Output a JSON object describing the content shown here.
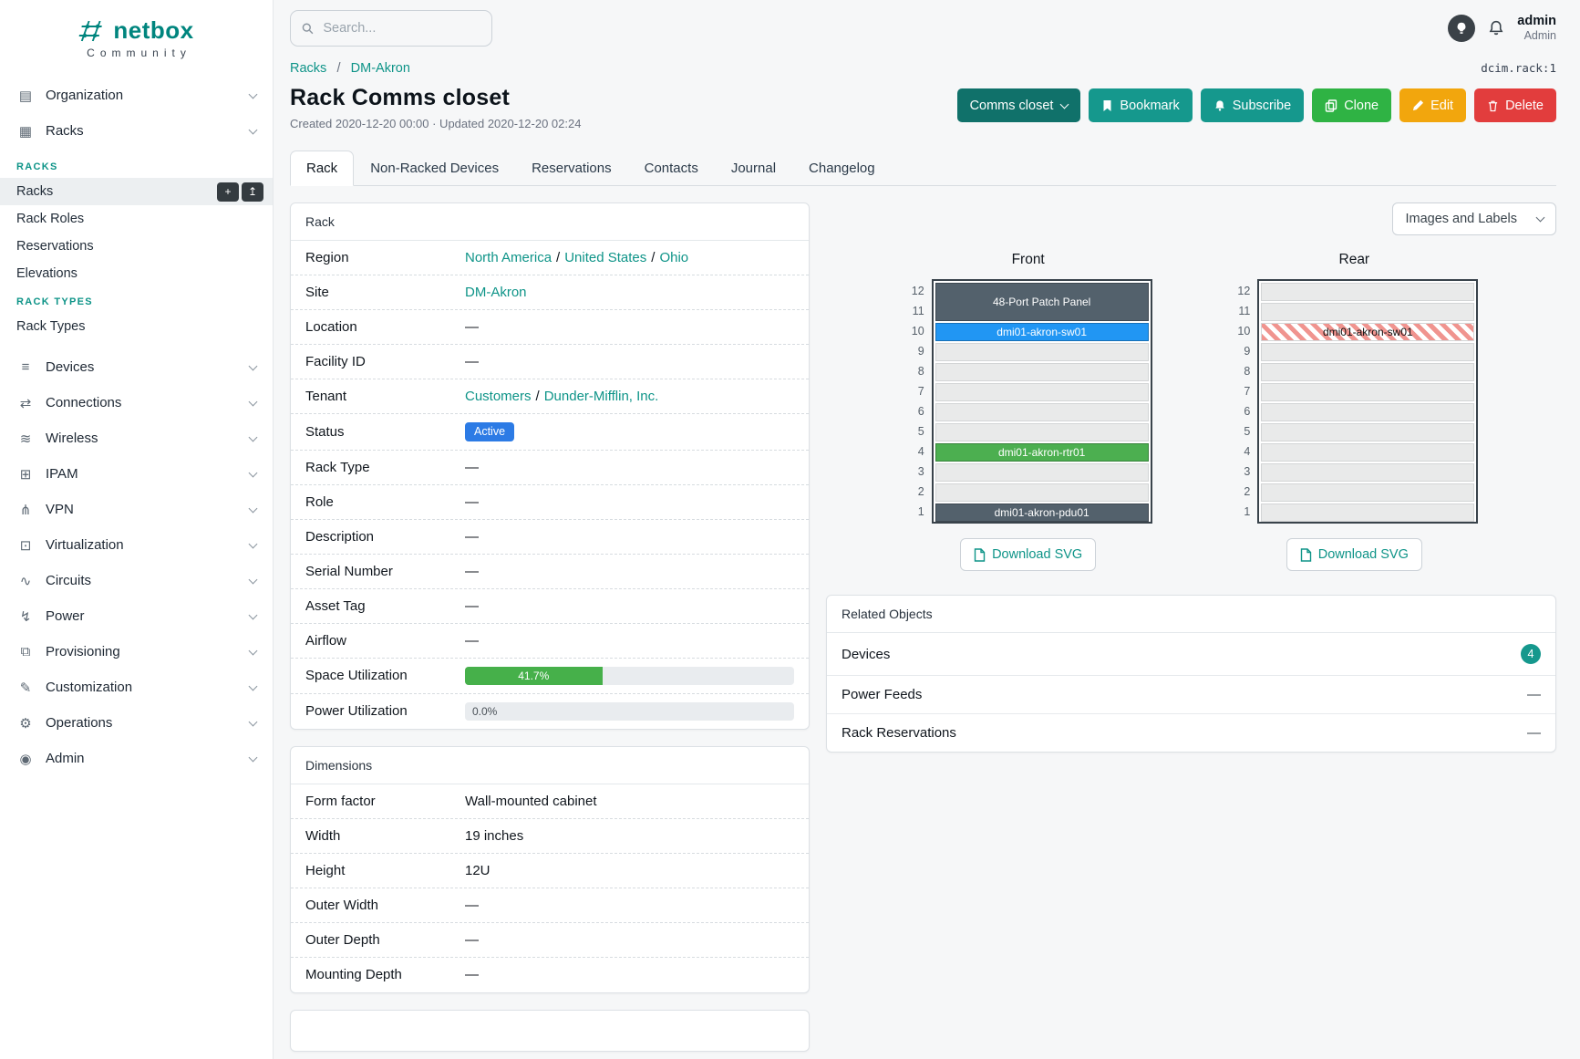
{
  "colors": {
    "brand": "#00857e",
    "link": "#0e9488",
    "teal_button": "#15988d",
    "teal_button_dark": "#10716a",
    "green_button": "#2fb344",
    "orange_button": "#f2a60d",
    "red_button": "#e23d3d",
    "active_badge": "#2c7be5",
    "progress_green": "#46b04a"
  },
  "brand": {
    "name": "netbox",
    "community": "Community"
  },
  "topbar": {
    "search_placeholder": "Search...",
    "username": "admin",
    "role": "Admin"
  },
  "sidebar": {
    "items": [
      {
        "label": "Organization",
        "glyph": "▤"
      },
      {
        "label": "Racks",
        "glyph": "▦"
      },
      {
        "label": "Devices",
        "glyph": "≡"
      },
      {
        "label": "Connections",
        "glyph": "⇄"
      },
      {
        "label": "Wireless",
        "glyph": "≋"
      },
      {
        "label": "IPAM",
        "glyph": "⊞"
      },
      {
        "label": "VPN",
        "glyph": "⋔"
      },
      {
        "label": "Virtualization",
        "glyph": "⊡"
      },
      {
        "label": "Circuits",
        "glyph": "∿"
      },
      {
        "label": "Power",
        "glyph": "↯"
      },
      {
        "label": "Provisioning",
        "glyph": "⧉"
      },
      {
        "label": "Customization",
        "glyph": "✎"
      },
      {
        "label": "Operations",
        "glyph": "⚙"
      },
      {
        "label": "Admin",
        "glyph": "◉"
      }
    ],
    "racks_menu": {
      "sections": [
        {
          "heading": "RACKS",
          "items": [
            "Racks",
            "Rack Roles",
            "Reservations",
            "Elevations"
          ]
        },
        {
          "heading": "RACK TYPES",
          "items": [
            "Rack Types"
          ]
        }
      ],
      "add_glyph": "+",
      "import_glyph": "↥"
    }
  },
  "page": {
    "breadcrumb": {
      "items": [
        "Racks",
        "DM-Akron"
      ],
      "separator": "/"
    },
    "object_id": "dcim.rack:1",
    "title": "Rack Comms closet",
    "meta": "Created 2020-12-20 00:00 · Updated 2020-12-20 02:24"
  },
  "actions": {
    "primary": "Comms closet",
    "bookmark": "Bookmark",
    "subscribe": "Subscribe",
    "clone": "Clone",
    "edit": "Edit",
    "delete": "Delete"
  },
  "tabs": [
    "Rack",
    "Non-Racked Devices",
    "Reservations",
    "Contacts",
    "Journal",
    "Changelog"
  ],
  "rack_card": {
    "title": "Rack",
    "separator": "/",
    "region": {
      "label": "Region",
      "links": [
        "North America",
        "United States",
        "Ohio"
      ]
    },
    "site": {
      "label": "Site",
      "link": "DM-Akron"
    },
    "location": {
      "label": "Location",
      "value": "—"
    },
    "facility_id": {
      "label": "Facility ID",
      "value": "—"
    },
    "tenant": {
      "label": "Tenant",
      "links": [
        "Customers",
        "Dunder-Mifflin, Inc."
      ]
    },
    "status": {
      "label": "Status",
      "badge": "Active"
    },
    "rack_type": {
      "label": "Rack Type",
      "value": "—"
    },
    "role": {
      "label": "Role",
      "value": "—"
    },
    "description": {
      "label": "Description",
      "value": "—"
    },
    "serial_number": {
      "label": "Serial Number",
      "value": "—"
    },
    "asset_tag": {
      "label": "Asset Tag",
      "value": "—"
    },
    "airflow": {
      "label": "Airflow",
      "value": "—"
    },
    "space_utilization": {
      "label": "Space Utilization",
      "percent": 41.7,
      "text": "41.7%"
    },
    "power_utilization": {
      "label": "Power Utilization",
      "percent": 0,
      "text": "0.0%"
    }
  },
  "dimensions_card": {
    "title": "Dimensions",
    "form_factor": {
      "label": "Form factor",
      "value": "Wall-mounted cabinet"
    },
    "width": {
      "label": "Width",
      "value": "19 inches"
    },
    "height": {
      "label": "Height",
      "value": "12U"
    },
    "outer_width": {
      "label": "Outer Width",
      "value": "—"
    },
    "outer_depth": {
      "label": "Outer Depth",
      "value": "—"
    },
    "mounting_depth": {
      "label": "Mounting Depth",
      "value": "—"
    }
  },
  "elevations": {
    "view_mode": "Images and Labels",
    "download_label": "Download SVG",
    "unit_count": 12,
    "front": {
      "title": "Front",
      "devices": [
        {
          "top_unit": 12,
          "span": 2,
          "label": "48-Port Patch Panel",
          "bg": "#53616c",
          "fg": "#ffffff"
        },
        {
          "top_unit": 10,
          "span": 1,
          "label": "dmi01-akron-sw01",
          "bg": "#2196f3",
          "fg": "#ffffff"
        },
        {
          "top_unit": 4,
          "span": 1,
          "label": "dmi01-akron-rtr01",
          "bg": "#4caf50",
          "fg": "#ffffff"
        },
        {
          "top_unit": 1,
          "span": 1,
          "label": "dmi01-akron-pdu01",
          "bg": "#53616c",
          "fg": "#ffffff"
        }
      ]
    },
    "rear": {
      "title": "Rear",
      "devices": [
        {
          "top_unit": 10,
          "span": 1,
          "label": "dmi01-akron-sw01",
          "hatched": true,
          "fg": "#111111"
        }
      ]
    }
  },
  "related_objects": {
    "title": "Related Objects",
    "rows": [
      {
        "label": "Devices",
        "badge": "4"
      },
      {
        "label": "Power Feeds",
        "value": "—"
      },
      {
        "label": "Rack Reservations",
        "value": "—"
      }
    ]
  }
}
